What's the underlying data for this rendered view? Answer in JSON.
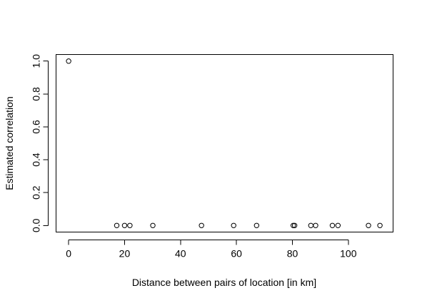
{
  "chart_data": {
    "type": "scatter",
    "title": "",
    "xlabel": "Distance between pairs of location [in km]",
    "ylabel": "Estimated correlation",
    "xlim": [
      -4.5,
      116
    ],
    "ylim": [
      -0.04,
      1.04
    ],
    "x_ticks": [
      0,
      20,
      40,
      60,
      80,
      100
    ],
    "x_tick_labels": [
      "0",
      "20",
      "40",
      "60",
      "80",
      "100"
    ],
    "y_ticks": [
      0.0,
      0.2,
      0.4,
      0.6,
      0.8,
      1.0
    ],
    "y_tick_labels": [
      "0.0",
      "0.2",
      "0.4",
      "0.6",
      "0.8",
      "1.0"
    ],
    "marker": "open-circle",
    "grid": false,
    "points": [
      {
        "x": 0,
        "y": 1.0
      },
      {
        "x": 17.2,
        "y": 0.0
      },
      {
        "x": 20.0,
        "y": 0.0
      },
      {
        "x": 21.9,
        "y": 0.0
      },
      {
        "x": 30.1,
        "y": 0.0
      },
      {
        "x": 47.5,
        "y": 0.0
      },
      {
        "x": 59.0,
        "y": 0.0
      },
      {
        "x": 67.2,
        "y": 0.0
      },
      {
        "x": 80.3,
        "y": 0.0
      },
      {
        "x": 80.8,
        "y": 0.0
      },
      {
        "x": 86.6,
        "y": 0.0
      },
      {
        "x": 88.3,
        "y": 0.0
      },
      {
        "x": 94.3,
        "y": 0.0
      },
      {
        "x": 96.3,
        "y": 0.0
      },
      {
        "x": 107.2,
        "y": 0.0
      },
      {
        "x": 111.3,
        "y": 0.0
      }
    ]
  }
}
